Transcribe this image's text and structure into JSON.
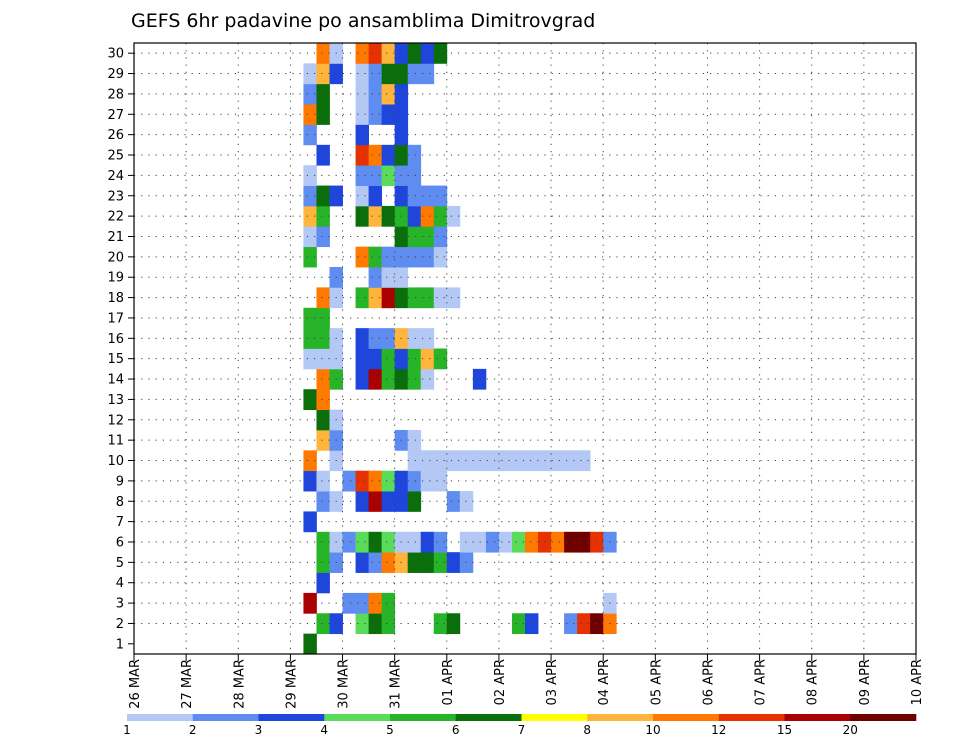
{
  "chart_data": {
    "type": "heatmap",
    "title": "GEFS 6hr padavine po ansamblima Dimitrovgrad",
    "y_ticks": [
      "1",
      "2",
      "3",
      "4",
      "5",
      "6",
      "7",
      "8",
      "9",
      "10",
      "11",
      "12",
      "13",
      "14",
      "15",
      "16",
      "17",
      "18",
      "19",
      "20",
      "21",
      "22",
      "23",
      "24",
      "25",
      "26",
      "27",
      "28",
      "29",
      "30"
    ],
    "x_ticks": [
      "26 MAR",
      "27 MAR",
      "28 MAR",
      "29 MAR",
      "30 MAR",
      "31 MAR",
      "01 APR",
      "02 APR",
      "03 APR",
      "04 APR",
      "05 APR",
      "06 APR",
      "07 APR",
      "08 APR",
      "09 APR",
      "10 APR"
    ],
    "x_range_days": [
      0,
      15
    ],
    "y_range": [
      0.5,
      30.5
    ],
    "time_step_hours": 6,
    "grid": true,
    "legend": {
      "placement": "bottom",
      "labels": [
        "1",
        "2",
        "3",
        "4",
        "5",
        "6",
        "7",
        "8",
        "10",
        "12",
        "15",
        "20"
      ],
      "colors": [
        "#b4c8f5",
        "#5f8cf0",
        "#1e46dc",
        "#5adc5a",
        "#28b428",
        "#0a6e0a",
        "#ffff00",
        "#ffb43c",
        "#ff7800",
        "#e63200",
        "#aa0000",
        "#6e0000"
      ]
    },
    "rows": [
      {
        "member": "1",
        "cells": [
          [
            13,
            6
          ]
        ]
      },
      {
        "member": "2",
        "cells": [
          [
            14,
            5
          ],
          [
            15,
            3
          ],
          [
            17,
            4
          ],
          [
            18,
            6
          ],
          [
            19,
            5
          ],
          [
            23,
            5
          ],
          [
            24,
            6
          ],
          [
            29,
            5
          ],
          [
            30,
            3
          ],
          [
            33,
            2
          ],
          [
            34,
            12
          ],
          [
            35,
            20
          ],
          [
            36,
            10
          ]
        ]
      },
      {
        "member": "3",
        "cells": [
          [
            13,
            15
          ],
          [
            16,
            2
          ],
          [
            17,
            2
          ],
          [
            18,
            10
          ],
          [
            19,
            5
          ],
          [
            36,
            1
          ]
        ]
      },
      {
        "member": "4",
        "cells": [
          [
            14,
            3
          ]
        ]
      },
      {
        "member": "5",
        "cells": [
          [
            14,
            5
          ],
          [
            15,
            2
          ],
          [
            17,
            3
          ],
          [
            18,
            2
          ],
          [
            19,
            10
          ],
          [
            20,
            8
          ],
          [
            21,
            6
          ],
          [
            22,
            6
          ],
          [
            23,
            5
          ],
          [
            24,
            3
          ],
          [
            25,
            2
          ]
        ]
      },
      {
        "member": "6",
        "cells": [
          [
            14,
            5
          ],
          [
            15,
            1
          ],
          [
            16,
            2
          ],
          [
            17,
            4
          ],
          [
            18,
            6
          ],
          [
            19,
            4
          ],
          [
            20,
            1
          ],
          [
            21,
            1
          ],
          [
            22,
            3
          ],
          [
            23,
            2
          ],
          [
            25,
            1
          ],
          [
            26,
            1
          ],
          [
            27,
            2
          ],
          [
            28,
            1
          ],
          [
            29,
            4
          ],
          [
            30,
            10
          ],
          [
            31,
            12
          ],
          [
            32,
            10
          ],
          [
            33,
            20
          ],
          [
            34,
            20
          ],
          [
            35,
            12
          ],
          [
            36,
            2
          ]
        ]
      },
      {
        "member": "7",
        "cells": [
          [
            13,
            3
          ]
        ]
      },
      {
        "member": "8",
        "cells": [
          [
            14,
            2
          ],
          [
            15,
            1
          ],
          [
            17,
            3
          ],
          [
            18,
            15
          ],
          [
            19,
            3
          ],
          [
            20,
            3
          ],
          [
            21,
            6
          ],
          [
            24,
            2
          ],
          [
            25,
            1
          ]
        ]
      },
      {
        "member": "9",
        "cells": [
          [
            13,
            3
          ],
          [
            14,
            1
          ],
          [
            16,
            2
          ],
          [
            17,
            12
          ],
          [
            18,
            10
          ],
          [
            19,
            4
          ],
          [
            20,
            3
          ],
          [
            21,
            2
          ],
          [
            22,
            1
          ],
          [
            23,
            1
          ]
        ]
      },
      {
        "member": "10",
        "cells": [
          [
            13,
            10
          ],
          [
            15,
            1
          ],
          [
            21,
            1
          ],
          [
            22,
            1
          ],
          [
            23,
            1
          ],
          [
            24,
            1
          ],
          [
            25,
            1
          ],
          [
            26,
            1
          ],
          [
            27,
            1
          ],
          [
            28,
            1
          ],
          [
            29,
            1
          ],
          [
            30,
            1
          ],
          [
            31,
            1
          ],
          [
            32,
            1
          ],
          [
            33,
            1
          ],
          [
            34,
            1
          ]
        ]
      },
      {
        "member": "11",
        "cells": [
          [
            14,
            8
          ],
          [
            15,
            2
          ],
          [
            20,
            2
          ],
          [
            21,
            1
          ]
        ]
      },
      {
        "member": "12",
        "cells": [
          [
            14,
            6
          ],
          [
            15,
            1
          ]
        ]
      },
      {
        "member": "13",
        "cells": [
          [
            13,
            6
          ],
          [
            14,
            10
          ]
        ]
      },
      {
        "member": "14",
        "cells": [
          [
            14,
            10
          ],
          [
            15,
            5
          ],
          [
            17,
            3
          ],
          [
            18,
            15
          ],
          [
            19,
            5
          ],
          [
            20,
            6
          ],
          [
            21,
            5
          ],
          [
            22,
            1
          ],
          [
            26,
            3
          ]
        ]
      },
      {
        "member": "15",
        "cells": [
          [
            13,
            1
          ],
          [
            14,
            1
          ],
          [
            15,
            1
          ],
          [
            17,
            3
          ],
          [
            18,
            3
          ],
          [
            19,
            5
          ],
          [
            20,
            3
          ],
          [
            21,
            5
          ],
          [
            22,
            8
          ],
          [
            23,
            5
          ]
        ]
      },
      {
        "member": "16",
        "cells": [
          [
            13,
            5
          ],
          [
            14,
            5
          ],
          [
            15,
            1
          ],
          [
            17,
            3
          ],
          [
            18,
            2
          ],
          [
            19,
            2
          ],
          [
            20,
            8
          ],
          [
            21,
            1
          ],
          [
            22,
            1
          ]
        ]
      },
      {
        "member": "17",
        "cells": [
          [
            13,
            5
          ],
          [
            14,
            5
          ]
        ]
      },
      {
        "member": "18",
        "cells": [
          [
            14,
            10
          ],
          [
            15,
            1
          ],
          [
            17,
            5
          ],
          [
            18,
            8
          ],
          [
            19,
            15
          ],
          [
            20,
            6
          ],
          [
            21,
            5
          ],
          [
            22,
            5
          ],
          [
            23,
            1
          ],
          [
            24,
            1
          ]
        ]
      },
      {
        "member": "19",
        "cells": [
          [
            15,
            2
          ],
          [
            18,
            2
          ],
          [
            19,
            1
          ],
          [
            20,
            1
          ]
        ]
      },
      {
        "member": "20",
        "cells": [
          [
            13,
            5
          ],
          [
            17,
            10
          ],
          [
            18,
            5
          ],
          [
            19,
            2
          ],
          [
            20,
            2
          ],
          [
            21,
            2
          ],
          [
            22,
            2
          ],
          [
            23,
            1
          ]
        ]
      },
      {
        "member": "21",
        "cells": [
          [
            13,
            1
          ],
          [
            14,
            2
          ],
          [
            20,
            6
          ],
          [
            21,
            5
          ],
          [
            22,
            5
          ],
          [
            23,
            2
          ]
        ]
      },
      {
        "member": "22",
        "cells": [
          [
            13,
            8
          ],
          [
            14,
            5
          ],
          [
            17,
            6
          ],
          [
            18,
            8
          ],
          [
            19,
            6
          ],
          [
            20,
            5
          ],
          [
            21,
            3
          ],
          [
            22,
            10
          ],
          [
            23,
            5
          ],
          [
            24,
            1
          ]
        ]
      },
      {
        "member": "23",
        "cells": [
          [
            13,
            2
          ],
          [
            14,
            6
          ],
          [
            15,
            3
          ],
          [
            17,
            1
          ],
          [
            18,
            3
          ],
          [
            20,
            3
          ],
          [
            21,
            2
          ],
          [
            22,
            2
          ],
          [
            23,
            2
          ]
        ]
      },
      {
        "member": "24",
        "cells": [
          [
            13,
            1
          ],
          [
            17,
            2
          ],
          [
            18,
            2
          ],
          [
            19,
            4
          ],
          [
            20,
            2
          ],
          [
            21,
            2
          ]
        ]
      },
      {
        "member": "25",
        "cells": [
          [
            14,
            3
          ],
          [
            17,
            12
          ],
          [
            18,
            10
          ],
          [
            19,
            3
          ],
          [
            20,
            6
          ],
          [
            21,
            2
          ]
        ]
      },
      {
        "member": "26",
        "cells": [
          [
            13,
            2
          ],
          [
            17,
            3
          ],
          [
            20,
            3
          ]
        ]
      },
      {
        "member": "27",
        "cells": [
          [
            13,
            10
          ],
          [
            14,
            6
          ],
          [
            17,
            1
          ],
          [
            18,
            2
          ],
          [
            19,
            3
          ],
          [
            20,
            3
          ]
        ]
      },
      {
        "member": "28",
        "cells": [
          [
            13,
            2
          ],
          [
            14,
            6
          ],
          [
            17,
            1
          ],
          [
            18,
            2
          ],
          [
            19,
            8
          ],
          [
            20,
            3
          ]
        ]
      },
      {
        "member": "29",
        "cells": [
          [
            13,
            1
          ],
          [
            14,
            8
          ],
          [
            15,
            3
          ],
          [
            17,
            1
          ],
          [
            18,
            2
          ],
          [
            19,
            6
          ],
          [
            20,
            6
          ],
          [
            21,
            2
          ],
          [
            22,
            2
          ]
        ]
      },
      {
        "member": "30",
        "cells": [
          [
            14,
            10
          ],
          [
            15,
            1
          ],
          [
            17,
            10
          ],
          [
            18,
            12
          ],
          [
            19,
            8
          ],
          [
            20,
            3
          ],
          [
            21,
            6
          ],
          [
            22,
            3
          ],
          [
            23,
            6
          ]
        ]
      }
    ]
  }
}
